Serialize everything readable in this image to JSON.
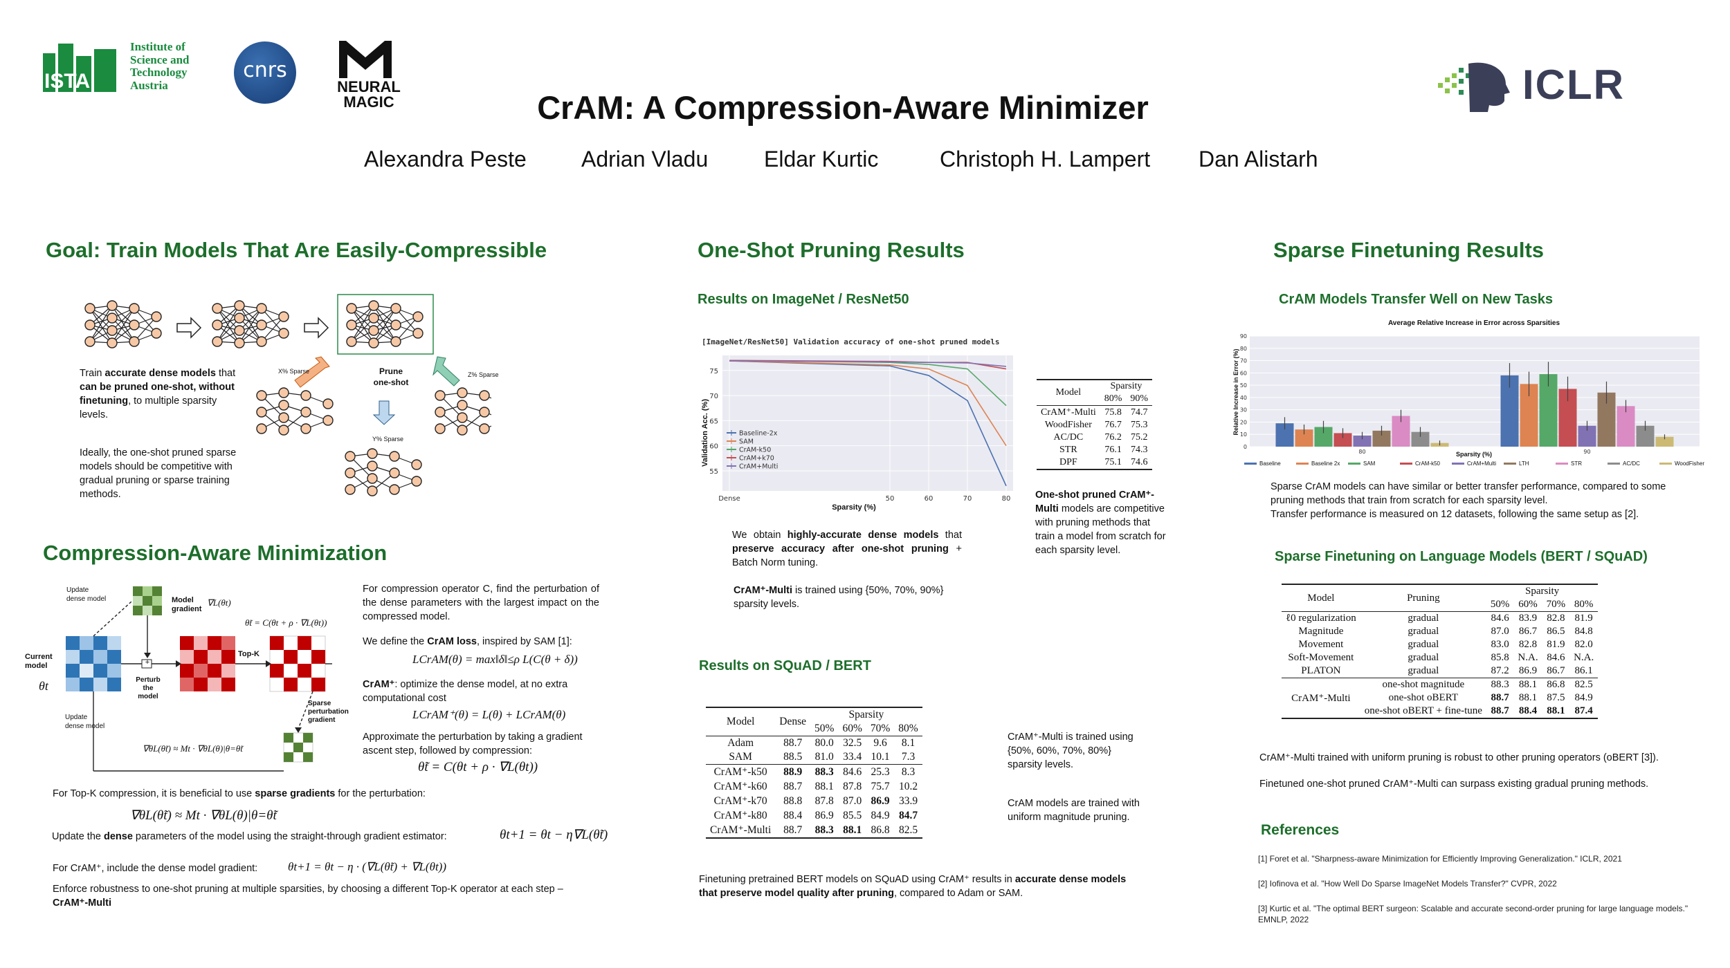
{
  "logos": {
    "ista_letters": "ISTA",
    "ista_text": [
      "Institute of",
      "Science and",
      "Technology",
      "Austria"
    ],
    "cnrs": "cnrs",
    "neural_magic": [
      "NEURAL",
      "MAGIC"
    ],
    "iclr": "ICLR"
  },
  "title": "CrAM: A Compression-Aware Minimizer",
  "authors": [
    "Alexandra Peste",
    "Adrian Vladu",
    "Eldar Kurtic",
    "Christoph H. Lampert",
    "Dan Alistarh"
  ],
  "goal": {
    "title": "Goal: Train Models That Are Easily-Compressible",
    "text1_pre": "Train ",
    "text1_b1": "accurate dense models",
    "text1_mid": " that ",
    "text1_b2": "can be pruned one-shot, without finetuning",
    "text1_post": ", to multiple sparsity levels.",
    "text2": "Ideally, the one-shot pruned sparse models should be competitive with gradual pruning or sparse training methods.",
    "prune_label": "Prune one-shot",
    "x_sparse": "X% Sparse",
    "y_sparse": "Y% Sparse",
    "z_sparse": "Z% Sparse"
  },
  "cam": {
    "title": "Compression-Aware Minimization",
    "diagram": {
      "update_dense_top": "Update dense model",
      "model_gradient": "Model gradient",
      "grad_sym": "∇L(θt)",
      "current_model": "Current model",
      "theta_t": "θt",
      "perturb": "Perturb the model",
      "topk": "Top-K",
      "sparse_pert": "Sparse perturbation gradient",
      "update_dense_bottom": "Update dense model",
      "eq_top": "θ̃t = C(θt + ρ · ∇L(θt))",
      "eq_bottom": "∇θL(θ̃t) ≈ Mt · ∇θL(θ)|θ=θ̃t",
      "plus": "+"
    },
    "p1": "For compression operator C, find the perturbation of the dense parameters with the largest impact on the compressed model.",
    "p2_pre": "We define the ",
    "p2_b": "CrAM loss",
    "p2_post": ", inspired by SAM [1]:",
    "eq1": "LCrAM(θ) = max‖δ‖≤ρ L(C(θ + δ))",
    "p3_b": "CrAM⁺",
    "p3_post": ": optimize the dense model, at no extra computational cost",
    "eq2": "LCrAM⁺(θ) = L(θ) + LCrAM(θ)",
    "p4": "Approximate the perturbation by taking a gradient ascent step, followed by compression:",
    "eq3": "θ̃t = C(θt + ρ · ∇L(θt))",
    "p5_pre": "For Top-K compression, it is beneficial to use ",
    "p5_b": "sparse gradients",
    "p5_post": " for the perturbation:",
    "eq4": "∇θL(θ̃t) ≈ Mt · ∇θL(θ)|θ=θ̃t",
    "p6_pre": "Update the ",
    "p6_b": "dense",
    "p6_post": " parameters of the model using the straight-through gradient estimator:",
    "eq5": "θt+1 = θt − η∇L(θ̃t)",
    "p7": "For CrAM⁺, include the dense model gradient:",
    "eq6": "θt+1 = θt − η · (∇L(θ̃t) + ∇L(θt))",
    "p8": "Enforce robustness to one-shot pruning at multiple sparsities, by choosing a different Top-K operator at each step  – ",
    "p8_b": "CrAM⁺-Multi"
  },
  "oneshot": {
    "title": "One-Shot Pruning Results",
    "imagenet_title": "Results on ImageNet / ResNet50",
    "chart_text1_pre": "We obtain ",
    "chart_text1_b1": "highly-accurate dense models",
    "chart_text1_mid": " that ",
    "chart_text1_b2": "preserve accuracy after one-shot pruning",
    "chart_text1_post": " + Batch Norm tuning.",
    "chart_text2_b": "CrAM⁺-Multi",
    "chart_text2_post": " is trained using {50%, 70%, 90%} sparsity levels.",
    "table1": {
      "head_model": "Model",
      "head_sparsity": "Sparsity",
      "cols": [
        "80%",
        "90%"
      ],
      "rows": [
        [
          "CrAM⁺-Multi",
          "75.8",
          "74.7"
        ],
        [
          "WoodFisher",
          "76.7",
          "75.3"
        ],
        [
          "AC/DC",
          "76.2",
          "75.2"
        ],
        [
          "STR",
          "76.1",
          "74.3"
        ],
        [
          "DPF",
          "75.1",
          "74.6"
        ]
      ]
    },
    "table1_note_b": "One-shot pruned CrAM⁺-Multi",
    "table1_note_post": " models are competitive with pruning methods that train a model from scratch for each sparsity level.",
    "squad_title": "Results on SQuAD / BERT",
    "table2": {
      "head_model": "Model",
      "head_dense": "Dense",
      "head_sparsity": "Sparsity",
      "cols": [
        "50%",
        "60%",
        "70%",
        "80%"
      ],
      "rows1": [
        [
          "Adam",
          "88.7",
          "80.0",
          "32.5",
          "9.6",
          "8.1"
        ],
        [
          "SAM",
          "88.5",
          "81.0",
          "33.4",
          "10.1",
          "7.3"
        ]
      ],
      "rows2": [
        [
          "CrAM⁺-k50",
          "88.9",
          "88.3",
          "84.6",
          "25.3",
          "8.3"
        ],
        [
          "CrAM⁺-k60",
          "88.7",
          "88.1",
          "87.8",
          "75.7",
          "10.2"
        ],
        [
          "CrAM⁺-k70",
          "88.8",
          "87.8",
          "87.0",
          "86.9",
          "33.9"
        ],
        [
          "CrAM⁺-k80",
          "88.4",
          "86.9",
          "85.5",
          "84.9",
          "84.7"
        ],
        [
          "CrAM⁺-Multi",
          "88.7",
          "88.3",
          "88.1",
          "86.8",
          "82.5"
        ]
      ]
    },
    "squad_note1": "CrAM⁺-Multi is trained using {50%, 60%, 70%, 80%} sparsity levels.",
    "squad_note2": "CrAM models are trained with uniform magnitude pruning.",
    "squad_caption_pre": "Finetuning pretrained BERT models on SQuAD using CrAM⁺ results in ",
    "squad_caption_b": "accurate dense models that preserve model quality after pruning",
    "squad_caption_post": ", compared to Adam or SAM."
  },
  "sparse_ft": {
    "title": "Sparse Finetuning Results",
    "transfer_title": "CrAM Models Transfer Well on New Tasks",
    "transfer_text1": "Sparse CrAM models can have similar or better transfer performance, compared to some pruning methods that train from scratch for each sparsity level.",
    "transfer_text2": "Transfer performance is measured on 12 datasets, following the same setup as [2].",
    "lm_title": "Sparse Finetuning on Language Models (BERT / SQuAD)",
    "table3": {
      "head_model": "Model",
      "head_pruning": "Pruning",
      "head_sparsity": "Sparsity",
      "cols": [
        "50%",
        "60%",
        "70%",
        "80%"
      ],
      "rows1": [
        [
          "ℓ0 regularization",
          "gradual",
          "84.6",
          "83.9",
          "82.8",
          "81.9"
        ],
        [
          "Magnitude",
          "gradual",
          "87.0",
          "86.7",
          "86.5",
          "84.8"
        ],
        [
          "Movement",
          "gradual",
          "83.0",
          "82.8",
          "81.9",
          "82.0"
        ],
        [
          "Soft-Movement",
          "gradual",
          "85.8",
          "N.A.",
          "84.6",
          "N.A."
        ],
        [
          "PLATON",
          "gradual",
          "87.2",
          "86.9",
          "86.7",
          "86.1"
        ]
      ],
      "multi_model": "CrAM⁺-Multi",
      "rows2": [
        [
          "one-shot magnitude",
          "88.3",
          "88.1",
          "86.8",
          "82.5"
        ],
        [
          "one-shot oBERT",
          "88.7",
          "88.1",
          "87.5",
          "84.9"
        ],
        [
          "one-shot oBERT + fine-tune",
          "88.7",
          "88.4",
          "88.1",
          "87.4"
        ]
      ]
    },
    "lm_text1": "CrAM⁺-Multi trained with uniform pruning is robust to other pruning operators (oBERT [3]).",
    "lm_text2": "Finetuned one-shot pruned CrAM⁺-Multi can surpass existing gradual pruning methods."
  },
  "references": {
    "title": "References",
    "items": [
      "[1] Foret et al. \"Sharpness-aware Minimization for Efficiently Improving Generalization.\" ICLR, 2021",
      "[2] Iofinova et al. \"How Well Do Sparse ImageNet Models Transfer?\" CVPR, 2022",
      "[3] Kurtic et al. \"The optimal BERT surgeon: Scalable and accurate second-order pruning for large language models.\" EMNLP, 2022"
    ]
  },
  "chart_data": [
    {
      "type": "line",
      "title": "[ImageNet/ResNet50] Validation accuracy of one-shot pruned models",
      "xlabel": "Sparsity (%)",
      "ylabel": "Validation Acc. (%)",
      "categories": [
        "Dense",
        "50",
        "60",
        "70",
        "80"
      ],
      "yticks": [
        "55",
        "60",
        "65",
        "70",
        "75"
      ],
      "ylim": [
        51,
        78
      ],
      "series": [
        {
          "name": "Baseline-2x",
          "color": "#4c72b0",
          "values": [
            76.9,
            75.9,
            74.0,
            69.0,
            52.0
          ]
        },
        {
          "name": "SAM",
          "color": "#dd8452",
          "values": [
            76.9,
            76.1,
            75.3,
            72.0,
            60.0
          ]
        },
        {
          "name": "CrAM-k50",
          "color": "#55a868",
          "values": [
            77.0,
            76.6,
            76.2,
            75.3,
            68.0
          ]
        },
        {
          "name": "CrAM+k70",
          "color": "#c44e52",
          "values": [
            77.0,
            76.8,
            76.6,
            76.6,
            75.3
          ]
        },
        {
          "name": "CrAM+Multi",
          "color": "#8172b3",
          "values": [
            76.9,
            76.7,
            76.6,
            76.5,
            75.8
          ]
        }
      ]
    },
    {
      "type": "bar",
      "title": "Average Relative Increase in Error across Sparsities",
      "xlabel": "Sparsity (%)",
      "ylabel": "Relative Increase in Error (%)",
      "categories": [
        "80",
        "90"
      ],
      "yticks": [
        "0",
        "10",
        "20",
        "30",
        "40",
        "50",
        "60",
        "70",
        "80",
        "90"
      ],
      "ylim": [
        0,
        90
      ],
      "series": [
        {
          "name": "Baseline",
          "color": "#4c72b0",
          "values": [
            19,
            58
          ],
          "errors": [
            5,
            10
          ]
        },
        {
          "name": "Baseline 2x",
          "color": "#dd8452",
          "values": [
            14,
            51
          ],
          "errors": [
            4,
            10
          ]
        },
        {
          "name": "SAM",
          "color": "#55a868",
          "values": [
            16,
            59
          ],
          "errors": [
            5,
            10
          ]
        },
        {
          "name": "CrAM-k50",
          "color": "#c44e52",
          "values": [
            11,
            47
          ],
          "errors": [
            4,
            10
          ]
        },
        {
          "name": "CrAM+Multi",
          "color": "#8172b3",
          "values": [
            9,
            17
          ],
          "errors": [
            3,
            4
          ]
        },
        {
          "name": "LTH",
          "color": "#937860",
          "values": [
            13,
            44
          ],
          "errors": [
            4,
            9
          ]
        },
        {
          "name": "STR",
          "color": "#da8bc3",
          "values": [
            25,
            33
          ],
          "errors": [
            5,
            5
          ]
        },
        {
          "name": "AC/DC",
          "color": "#8c8c8c",
          "values": [
            12,
            17
          ],
          "errors": [
            4,
            4
          ]
        },
        {
          "name": "WoodFisher",
          "color": "#ccb974",
          "values": [
            3,
            8
          ],
          "errors": [
            2,
            2
          ]
        }
      ]
    }
  ]
}
